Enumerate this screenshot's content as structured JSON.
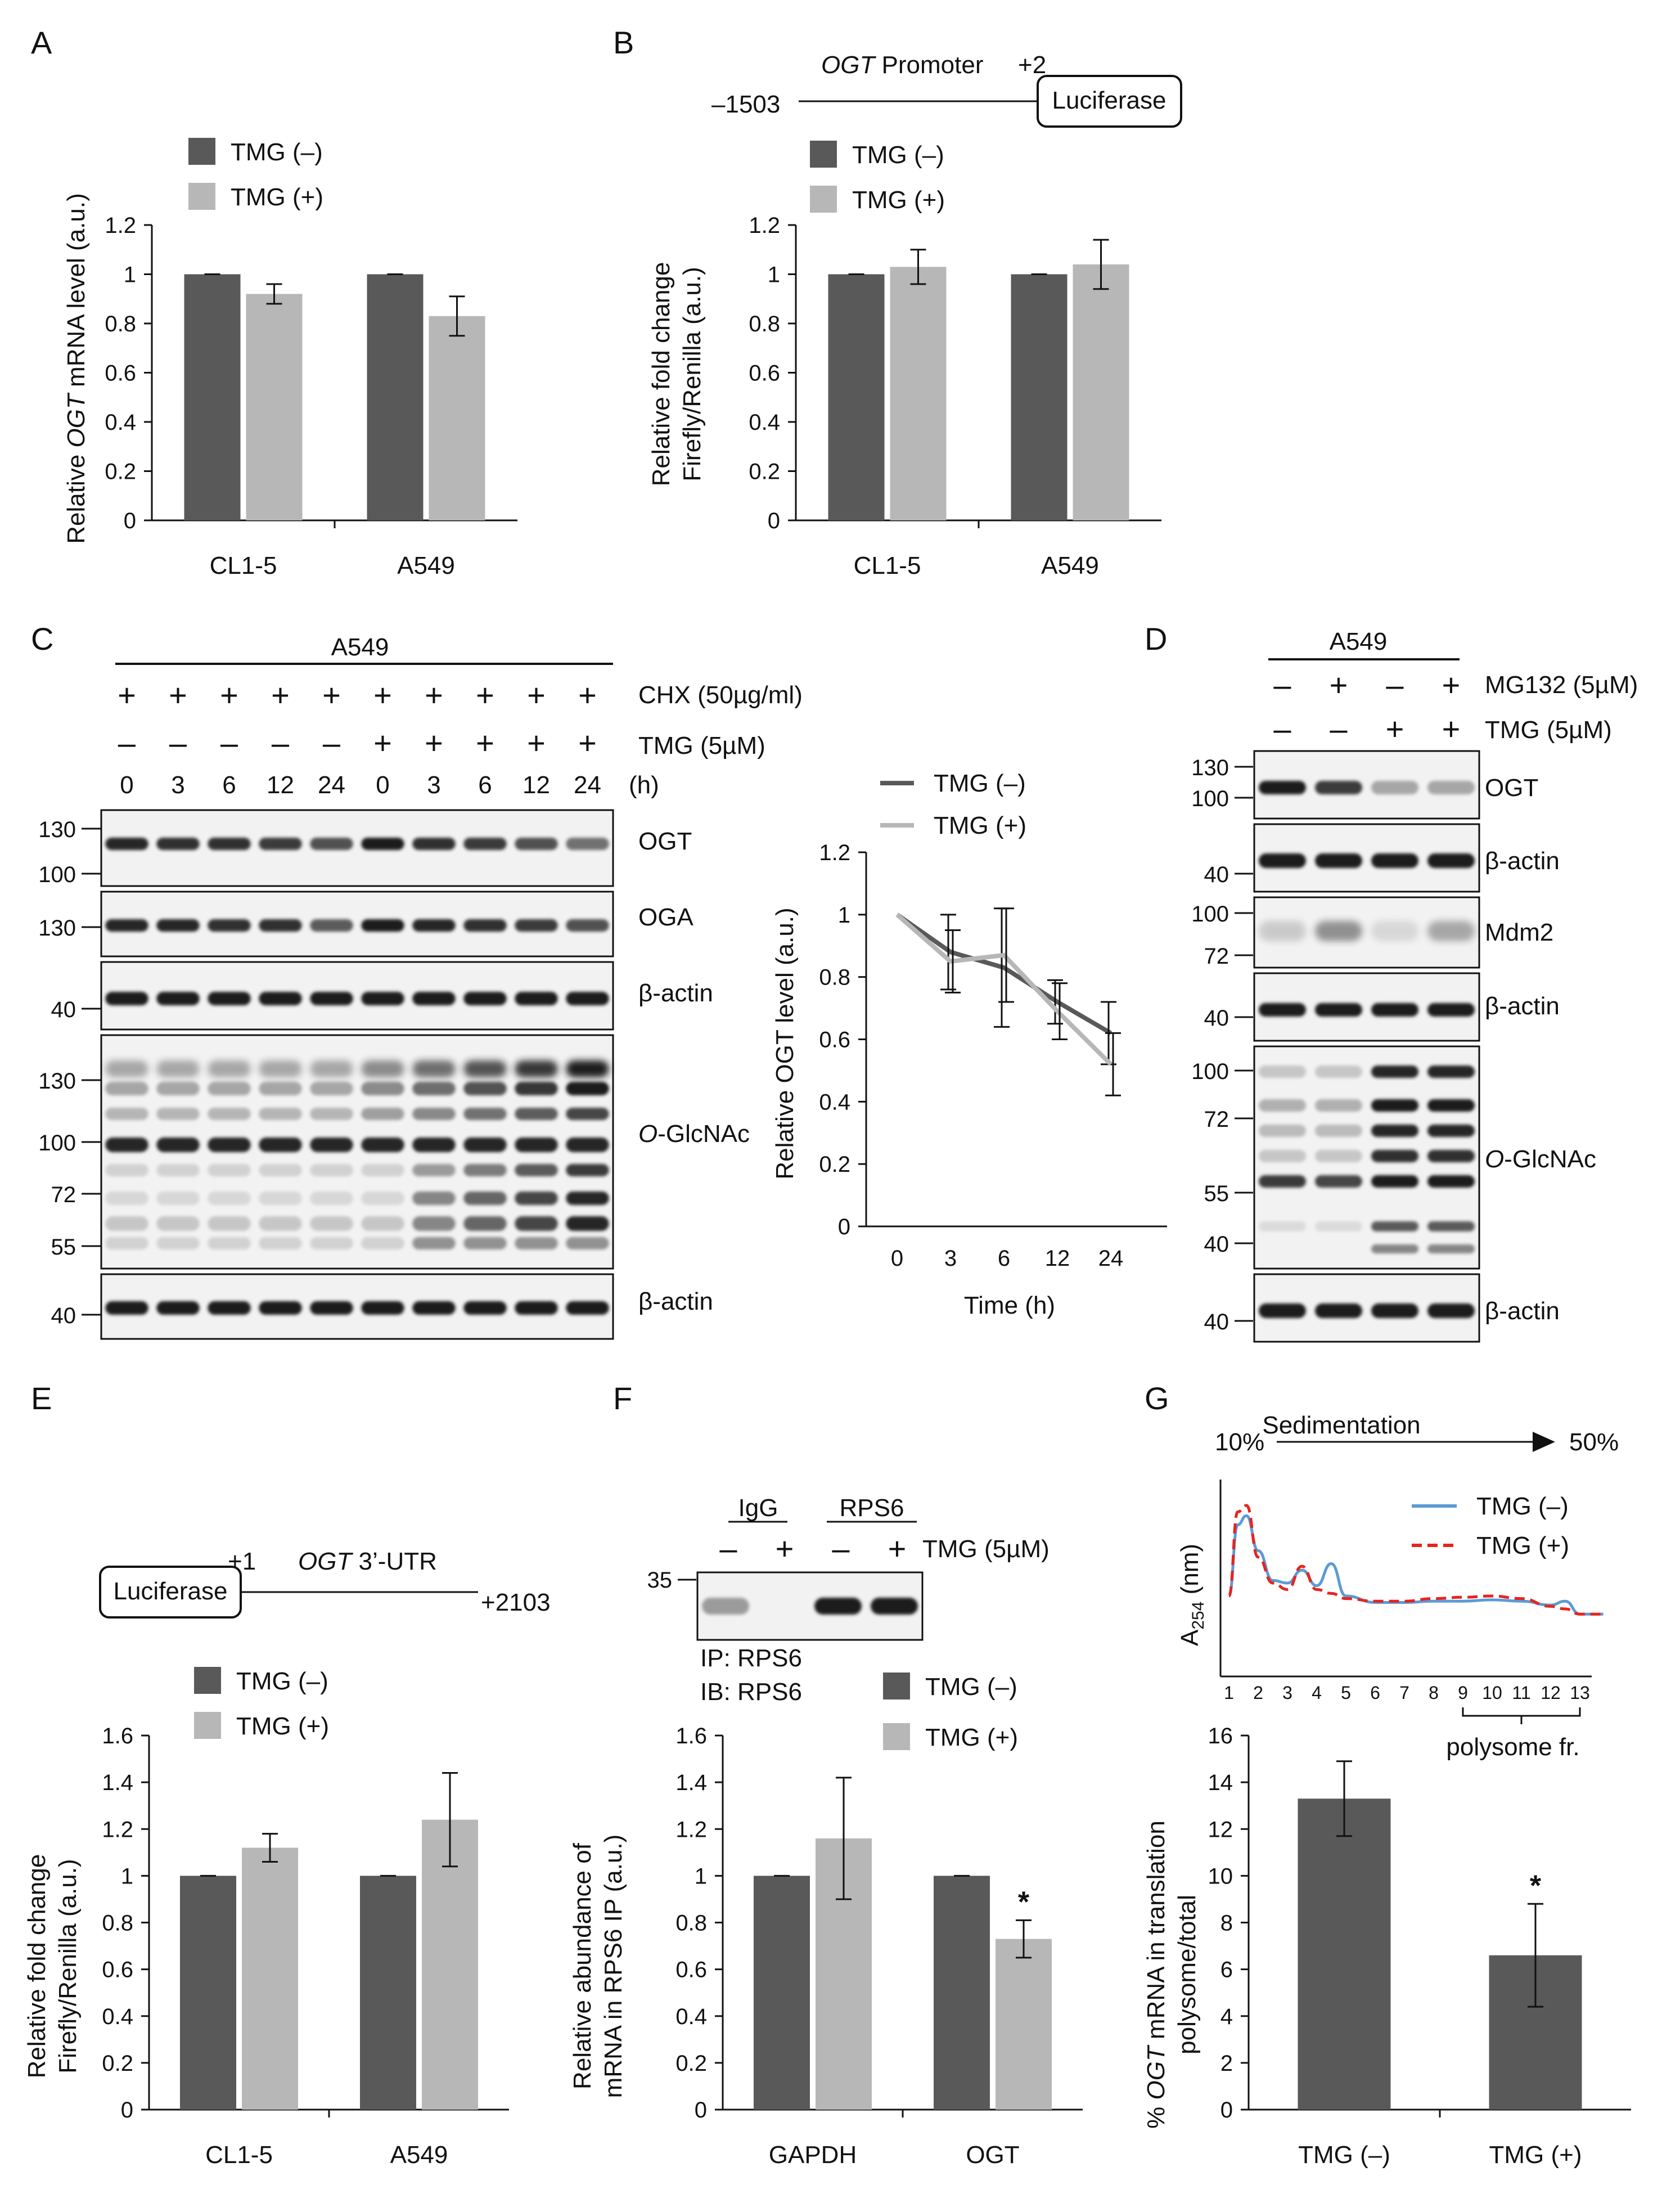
{
  "colors": {
    "dark": "#595959",
    "light": "#b7b7b7",
    "blue": "#5b9bd5",
    "red": "#e8231e",
    "blot_bg": "#f2f2f2",
    "band": "#1c1c1c"
  },
  "panel_labels": [
    "A",
    "B",
    "C",
    "D",
    "E",
    "F",
    "G"
  ],
  "chart_data": [
    {
      "id": "A",
      "type": "bar",
      "categories": [
        "CL1-5",
        "A549"
      ],
      "series": [
        {
          "name": "TMG (–)",
          "values": [
            1.0,
            1.0
          ],
          "errors": [
            0.0,
            0.0
          ]
        },
        {
          "name": "TMG (+)",
          "values": [
            0.92,
            0.83
          ],
          "errors": [
            0.04,
            0.08
          ]
        }
      ],
      "ylabel": {
        "pre": "Relative ",
        "ital": "OGT",
        "post": " mRNA level (a.u.)"
      },
      "ylim": [
        0,
        1.2
      ],
      "yticks": [
        "0",
        "0.2",
        "0.4",
        "0.6",
        "0.8",
        "1",
        "1.2"
      ]
    },
    {
      "id": "B",
      "type": "bar",
      "categories": [
        "CL1-5",
        "A549"
      ],
      "series": [
        {
          "name": "TMG (–)",
          "values": [
            1.0,
            1.0
          ],
          "errors": [
            0.0,
            0.0
          ]
        },
        {
          "name": "TMG (+)",
          "values": [
            1.03,
            1.04
          ],
          "errors": [
            0.07,
            0.1
          ]
        }
      ],
      "ylabel_lines": [
        "Relative fold change",
        "Firefly/Renilla (a.u.)"
      ],
      "ylim": [
        0,
        1.2
      ],
      "yticks": [
        "0",
        "0.2",
        "0.4",
        "0.6",
        "0.8",
        "1",
        "1.2"
      ],
      "construct": {
        "promoter_ital": "OGT",
        "promoter_label": " Promoter",
        "start": "–1503",
        "end": "+2",
        "box": "Luciferase"
      }
    },
    {
      "id": "C-line",
      "type": "line",
      "x": [
        "0",
        "3",
        "6",
        "12",
        "24"
      ],
      "series": [
        {
          "name": "TMG (–)",
          "values": [
            1.0,
            0.88,
            0.83,
            0.72,
            0.62
          ],
          "errors": [
            0.0,
            0.12,
            0.19,
            0.07,
            0.1
          ]
        },
        {
          "name": "TMG (+)",
          "values": [
            1.0,
            0.85,
            0.87,
            0.69,
            0.52
          ],
          "errors": [
            0.0,
            0.1,
            0.15,
            0.09,
            0.1
          ]
        }
      ],
      "xlabel": "Time (h)",
      "ylabel": "Relative OGT level (a.u.)",
      "ylim": [
        0,
        1.2
      ],
      "yticks": [
        "0",
        "0.2",
        "0.4",
        "0.6",
        "0.8",
        "1",
        "1.2"
      ]
    },
    {
      "id": "E",
      "type": "bar",
      "categories": [
        "CL1-5",
        "A549"
      ],
      "series": [
        {
          "name": "TMG (–)",
          "values": [
            1.0,
            1.0
          ],
          "errors": [
            0.0,
            0.0
          ]
        },
        {
          "name": "TMG (+)",
          "values": [
            1.12,
            1.24
          ],
          "errors": [
            0.06,
            0.2
          ]
        }
      ],
      "ylabel_lines": [
        "Relative fold change",
        "Firefly/Renilla (a.u.)"
      ],
      "ylim": [
        0,
        1.6
      ],
      "yticks": [
        "0",
        "0.2",
        "0.4",
        "0.6",
        "0.8",
        "1",
        "1.2",
        "1.4",
        "1.6"
      ],
      "construct": {
        "box": "Luciferase",
        "start": "+1",
        "utr_ital": "OGT",
        "utr_label": " 3’-UTR",
        "end": "+2103"
      }
    },
    {
      "id": "F",
      "type": "bar",
      "categories": [
        "GAPDH",
        "OGT"
      ],
      "series": [
        {
          "name": "TMG (–)",
          "values": [
            1.0,
            1.0
          ],
          "errors": [
            0.0,
            0.0
          ]
        },
        {
          "name": "TMG (+)",
          "values": [
            1.16,
            0.73
          ],
          "errors": [
            0.26,
            0.08
          ]
        }
      ],
      "ylabel_lines": [
        "Relative abundance of",
        "mRNA in RPS6 IP (a.u.)"
      ],
      "ylim": [
        0,
        1.6
      ],
      "yticks": [
        "0",
        "0.2",
        "0.4",
        "0.6",
        "0.8",
        "1",
        "1.2",
        "1.4",
        "1.6"
      ],
      "significance": "*"
    },
    {
      "id": "G-profile",
      "type": "line",
      "x": [
        1,
        1.3,
        1.6,
        2,
        2.5,
        3,
        3.5,
        4,
        4.5,
        5,
        6,
        7,
        8,
        9,
        10,
        11,
        12,
        12.5,
        13,
        13.8
      ],
      "series": [
        {
          "name": "TMG (–)",
          "values": [
            0.1,
            0.65,
            0.72,
            0.45,
            0.22,
            0.2,
            0.3,
            0.18,
            0.35,
            0.1,
            0.05,
            0.05,
            0.06,
            0.06,
            0.07,
            0.06,
            0.03,
            0.06,
            -0.04,
            -0.04
          ]
        },
        {
          "name": "TMG (+)",
          "values": [
            0.1,
            0.75,
            0.8,
            0.4,
            0.2,
            0.15,
            0.33,
            0.15,
            0.12,
            0.08,
            0.06,
            0.06,
            0.08,
            0.09,
            0.1,
            0.08,
            0.02,
            0.0,
            -0.04,
            -0.04
          ]
        }
      ],
      "title": "Sedimentation",
      "gradient_start": "10%",
      "gradient_end": "50%",
      "ylabel_main": "A",
      "ylabel_sub": "254",
      "ylabel_unit": " (nm)",
      "xticks": [
        "1",
        "2",
        "3",
        "4",
        "5",
        "6",
        "7",
        "8",
        "9",
        "10",
        "11",
        "12",
        "13"
      ],
      "bracket_label": "polysome  fr."
    },
    {
      "id": "G-bar",
      "type": "bar",
      "categories": [
        "TMG (–)",
        "TMG (+)"
      ],
      "values": [
        13.3,
        6.6
      ],
      "errors": [
        1.6,
        2.2
      ],
      "ylabel": {
        "pre": "% ",
        "ital": "OGT",
        "post": " mRNA in translation",
        "line2": "polysome/total"
      },
      "ylim": [
        0,
        16
      ],
      "yticks": [
        "0",
        "2",
        "4",
        "6",
        "8",
        "10",
        "12",
        "14",
        "16"
      ],
      "significance": "*"
    }
  ],
  "blot_C": {
    "cell_line": "A549",
    "cell_line_label": "A549",
    "chx_label": "CHX (50µg/ml)",
    "tmg_label": "TMG (5µM)",
    "chx_signs": [
      "+",
      "+",
      "+",
      "+",
      "+",
      "+",
      "+",
      "+",
      "+",
      "+"
    ],
    "tmg_signs": [
      "–",
      "–",
      "–",
      "–",
      "–",
      "+",
      "+",
      "+",
      "+",
      "+"
    ],
    "times": [
      "0",
      "3",
      "6",
      "12",
      "24",
      "0",
      "3",
      "6",
      "12",
      "24"
    ],
    "time_unit": "(h)",
    "panels": [
      "OGT",
      "OGA",
      "β-actin",
      "-GlcNAc",
      "β-actin"
    ],
    "ital_prefix": "O",
    "markers": [
      "130",
      "100",
      "130",
      "40",
      "130",
      "100",
      "72",
      "55",
      "40"
    ]
  },
  "blot_D": {
    "cell_line": "A549",
    "mg132_label": "MG132 (5µM)",
    "tmg_label": "TMG (5µM)",
    "mg132_signs": [
      "–",
      "+",
      "–",
      "+"
    ],
    "tmg_signs": [
      "–",
      "–",
      "+",
      "+"
    ],
    "panels": [
      "OGT",
      "β-actin",
      "Mdm2",
      "β-actin",
      "-GlcNAc",
      "β-actin"
    ],
    "ital_prefix": "O",
    "markers": [
      "130",
      "100",
      "40",
      "100",
      "72",
      "40",
      "100",
      "72",
      "55",
      "40",
      "40"
    ]
  },
  "blot_F": {
    "igg_label": "IgG",
    "rps6_label": "RPS6",
    "tmg_label": "TMG (5µM)",
    "signs": [
      "–",
      "+",
      "–",
      "+"
    ],
    "marker": "35",
    "ip_label": "IP: RPS6",
    "ib_label": "IB: RPS6"
  }
}
